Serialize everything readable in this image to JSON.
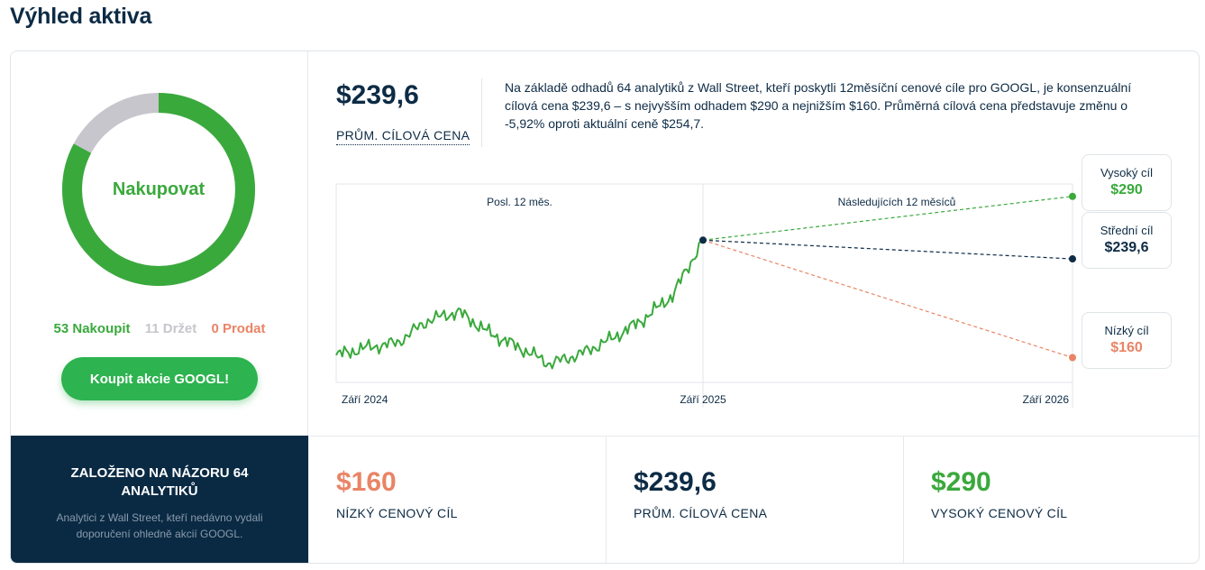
{
  "page": {
    "title": "Výhled aktiva"
  },
  "rating": {
    "label": "Nakupovat",
    "buy_count": 53,
    "hold_count": 11,
    "sell_count": 0,
    "buy_text": "53 Nakoupit",
    "hold_text": "11 Držet",
    "sell_text": "0 Prodat",
    "button_label": "Koupit akcie GOOGL!"
  },
  "colors": {
    "buy": "#3aa93c",
    "hold": "#c6c6cc",
    "sell": "#e98466",
    "navy": "#0d2b45",
    "dark_panel": "#0a2a44",
    "button": "#2db34f"
  },
  "header": {
    "avg_value": "$239,6",
    "avg_label": "PRŮM. CÍLOVÁ CENA",
    "summary": "Na základě odhadů 64 analytiků z Wall Street, kteří poskytli 12měsíční cenové cíle pro GOOGL, je konsenzuální cílová cena $239,6 – s nejvyšším odhadem $290 a nejnižším $160. Průměrná cílová cena představuje změnu o -5,92% oproti aktuální ceně $254,7."
  },
  "chart_data": {
    "type": "line",
    "sections": [
      "Posl. 12 měs.",
      "Následujících 12 měsíců"
    ],
    "x_tick_labels": [
      "Září 2024",
      "Září 2025",
      "Září 2026"
    ],
    "ylim": [
      140,
      300
    ],
    "current_price": 254.7,
    "history": {
      "name": "",
      "x": [
        "2024-09",
        "2024-10",
        "2024-11",
        "2024-12",
        "2025-01",
        "2025-02",
        "2025-03",
        "2025-04",
        "2025-05",
        "2025-06",
        "2025-07",
        "2025-08",
        "2025-09"
      ],
      "values": [
        162,
        168,
        172,
        190,
        197,
        180,
        168,
        155,
        163,
        175,
        190,
        210,
        254.7
      ]
    },
    "targets": [
      {
        "label": "Vysoký cíl",
        "value": 290,
        "display": "$290",
        "color": "#3aa93c"
      },
      {
        "label": "Střední cíl",
        "value": 239.6,
        "display": "$239,6",
        "color": "#0d2b45"
      },
      {
        "label": "Nízký cíl",
        "value": 160,
        "display": "$160",
        "color": "#e98466"
      }
    ]
  },
  "footer": {
    "title": "ZALOŽENO NA NÁZORU 64 ANALYTIKŮ",
    "subtitle": "Analytici z Wall Street, kteří nedávno vydali doporučení ohledně akcií GOOGL.",
    "stats": [
      {
        "value": "$160",
        "label": "NÍZKÝ CENOVÝ CÍL",
        "color": "#e98466"
      },
      {
        "value": "$239,6",
        "label": "PRŮM. CÍLOVÁ CENA",
        "color": "#0d2b45"
      },
      {
        "value": "$290",
        "label": "VYSOKÝ CENOVÝ CÍL",
        "color": "#3aa93c"
      }
    ]
  }
}
